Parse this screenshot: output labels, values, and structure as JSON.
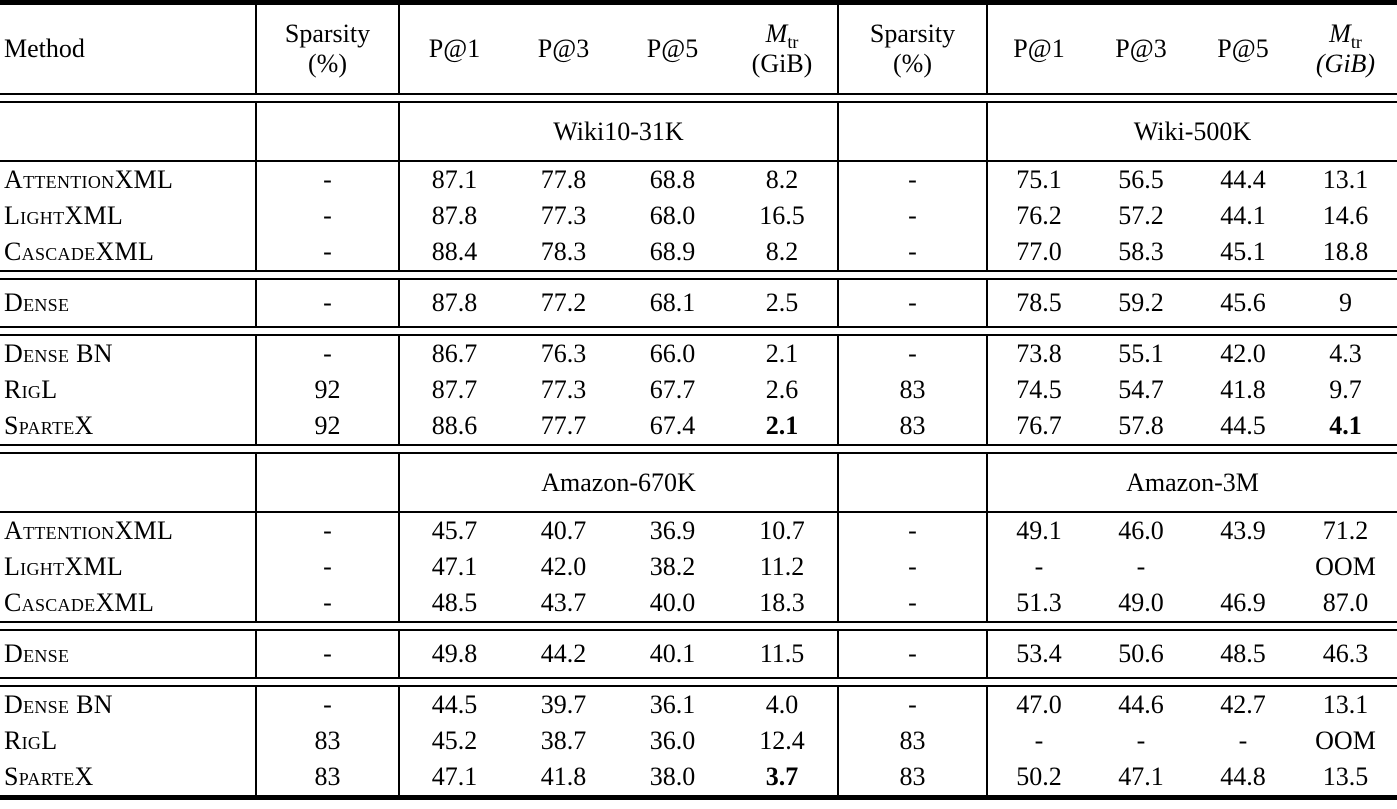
{
  "page": {
    "background": "#ffffff",
    "text_color": "#000000"
  },
  "table": {
    "header": {
      "method": "Method",
      "sparsity_top": "Sparsity",
      "sparsity_bottom": "(%)",
      "p_at_1": "P@1",
      "p_at_3": "P@3",
      "p_at_5": "P@5",
      "mtr_symbol": "M",
      "mtr_subscript": "tr",
      "mtr_unit_left": "(GiB)",
      "mtr_unit_right": "(GiB)"
    },
    "sections": [
      {
        "dataset_left": "Wiki10-31K",
        "dataset_right": "Wiki-500K",
        "groups": [
          {
            "rows": [
              {
                "method": "AttentionXML",
                "cells": [
                  "-",
                  "87.1",
                  "77.8",
                  "68.8",
                  "8.2",
                  "-",
                  "75.1",
                  "56.5",
                  "44.4",
                  "13.1"
                ],
                "bold": []
              },
              {
                "method": "LightXML",
                "cells": [
                  "-",
                  "87.8",
                  "77.3",
                  "68.0",
                  "16.5",
                  "-",
                  "76.2",
                  "57.2",
                  "44.1",
                  "14.6"
                ],
                "bold": []
              },
              {
                "method": "CascadeXML",
                "cells": [
                  "-",
                  "88.4",
                  "78.3",
                  "68.9",
                  "8.2",
                  "-",
                  "77.0",
                  "58.3",
                  "45.1",
                  "18.8"
                ],
                "bold": []
              }
            ]
          },
          {
            "rows": [
              {
                "method": "Dense",
                "cells": [
                  "-",
                  "87.8",
                  "77.2",
                  "68.1",
                  "2.5",
                  "-",
                  "78.5",
                  "59.2",
                  "45.6",
                  "9"
                ],
                "bold": []
              }
            ]
          },
          {
            "rows": [
              {
                "method": "Dense BN",
                "cells": [
                  "-",
                  "86.7",
                  "76.3",
                  "66.0",
                  "2.1",
                  "-",
                  "73.8",
                  "55.1",
                  "42.0",
                  "4.3"
                ],
                "bold": []
              },
              {
                "method": "RigL",
                "cells": [
                  "92",
                  "87.7",
                  "77.3",
                  "67.7",
                  "2.6",
                  "83",
                  "74.5",
                  "54.7",
                  "41.8",
                  "9.7"
                ],
                "bold": []
              },
              {
                "method": "SparteX",
                "cells": [
                  "92",
                  "88.6",
                  "77.7",
                  "67.4",
                  "2.1",
                  "83",
                  "76.7",
                  "57.8",
                  "44.5",
                  "4.1"
                ],
                "bold": [
                  4,
                  9
                ]
              }
            ]
          }
        ]
      },
      {
        "dataset_left": "Amazon-670K",
        "dataset_right": "Amazon-3M",
        "groups": [
          {
            "rows": [
              {
                "method": "AttentionXML",
                "cells": [
                  "-",
                  "45.7",
                  "40.7",
                  "36.9",
                  "10.7",
                  "-",
                  "49.1",
                  "46.0",
                  "43.9",
                  "71.2"
                ],
                "bold": []
              },
              {
                "method": "LightXML",
                "cells": [
                  "-",
                  "47.1",
                  "42.0",
                  "38.2",
                  "11.2",
                  "-",
                  "-",
                  "-",
                  "",
                  "OOM"
                ],
                "bold": []
              },
              {
                "method": "CascadeXML",
                "cells": [
                  "-",
                  "48.5",
                  "43.7",
                  "40.0",
                  "18.3",
                  "-",
                  "51.3",
                  "49.0",
                  "46.9",
                  "87.0"
                ],
                "bold": []
              }
            ]
          },
          {
            "rows": [
              {
                "method": "Dense",
                "cells": [
                  "-",
                  "49.8",
                  "44.2",
                  "40.1",
                  "11.5",
                  "-",
                  "53.4",
                  "50.6",
                  "48.5",
                  "46.3"
                ],
                "bold": []
              }
            ]
          },
          {
            "rows": [
              {
                "method": "Dense BN",
                "cells": [
                  "-",
                  "44.5",
                  "39.7",
                  "36.1",
                  "4.0",
                  "-",
                  "47.0",
                  "44.6",
                  "42.7",
                  "13.1"
                ],
                "bold": []
              },
              {
                "method": "RigL",
                "cells": [
                  "83",
                  "45.2",
                  "38.7",
                  "36.0",
                  "12.4",
                  "83",
                  "-",
                  "-",
                  "-",
                  "OOM"
                ],
                "bold": []
              },
              {
                "method": "SparteX",
                "cells": [
                  "83",
                  "47.1",
                  "41.8",
                  "38.0",
                  "3.7",
                  "83",
                  "50.2",
                  "47.1",
                  "44.8",
                  "13.5"
                ],
                "bold": [
                  4
                ]
              }
            ]
          }
        ]
      }
    ]
  }
}
